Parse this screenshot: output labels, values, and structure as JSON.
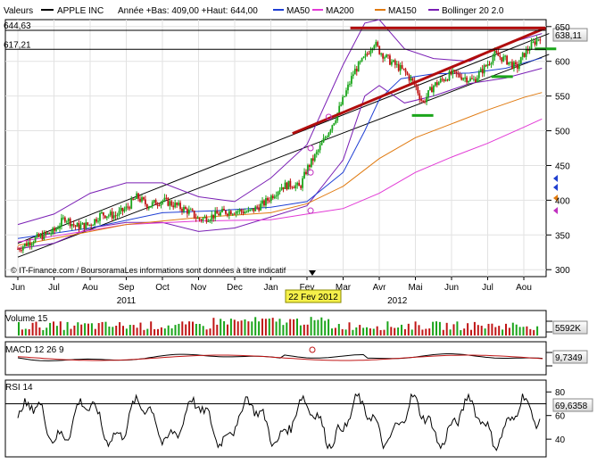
{
  "header": {
    "valeurs_label": "Valeurs",
    "series_label": "APPLE INC",
    "range_label": "Année +Bas: 409,00 +Haut: 644,00",
    "indicators": [
      {
        "name": "MA50",
        "color": "#1f3fd4"
      },
      {
        "name": "MA200",
        "color": "#e23ad6"
      },
      {
        "name": "MA150",
        "color": "#e07a10"
      },
      {
        "name": "Bollinger 20 2.0",
        "color": "#7a1fb5"
      }
    ]
  },
  "reference_lines": [
    {
      "label": "644,63",
      "value": 644.63
    },
    {
      "label": "617,21",
      "value": 617.21
    }
  ],
  "last_price": {
    "label": "638,11",
    "value": 638.11
  },
  "footer_note": "© IT-Finance.com / BoursoramaLes informations sont données à titre indicatif",
  "cursor_date": "22 Fev 2012",
  "chart_data": [
    {
      "type": "candlestick",
      "title": "APPLE INC",
      "x_ticks": [
        "Jun",
        "Jul",
        "Aou",
        "Sep",
        "Oct",
        "Nov",
        "Dec",
        "Jan",
        "Fev",
        "Mar",
        "Avr",
        "Mai",
        "Jun",
        "Jul",
        "Aou"
      ],
      "year_labels": [
        "2011",
        "2012"
      ],
      "y_ticks": [
        300,
        350,
        400,
        450,
        500,
        550,
        600,
        650
      ],
      "ylim": [
        290,
        660
      ],
      "price_path": [
        [
          0,
          330
        ],
        [
          0.5,
          345
        ],
        [
          1,
          355
        ],
        [
          1.3,
          375
        ],
        [
          1.6,
          362
        ],
        [
          2,
          365
        ],
        [
          2.3,
          380
        ],
        [
          2.7,
          378
        ],
        [
          3,
          388
        ],
        [
          3.3,
          405
        ],
        [
          3.6,
          392
        ],
        [
          4,
          400
        ],
        [
          4.4,
          392
        ],
        [
          4.8,
          382
        ],
        [
          5,
          372
        ],
        [
          5.3,
          376
        ],
        [
          5.7,
          383
        ],
        [
          6,
          385
        ],
        [
          6.4,
          383
        ],
        [
          6.8,
          395
        ],
        [
          7,
          405
        ],
        [
          7.3,
          420
        ],
        [
          7.6,
          423
        ],
        [
          7.8,
          418
        ],
        [
          8.0,
          445
        ],
        [
          8.3,
          470
        ],
        [
          8.6,
          500
        ],
        [
          8.8,
          520
        ],
        [
          9,
          545
        ],
        [
          9.3,
          585
        ],
        [
          9.6,
          605
        ],
        [
          9.85,
          628
        ],
        [
          10,
          615
        ],
        [
          10.3,
          600
        ],
        [
          10.7,
          585
        ],
        [
          11,
          565
        ],
        [
          11.2,
          540
        ],
        [
          11.5,
          565
        ],
        [
          11.8,
          575
        ],
        [
          12,
          582
        ],
        [
          12.3,
          578
        ],
        [
          12.6,
          572
        ],
        [
          12.9,
          590
        ],
        [
          13.2,
          610
        ],
        [
          13.5,
          602
        ],
        [
          13.8,
          590
        ],
        [
          14,
          610
        ],
        [
          14.3,
          628
        ],
        [
          14.5,
          638
        ]
      ],
      "ma50": [
        [
          0,
          345
        ],
        [
          2,
          360
        ],
        [
          4,
          382
        ],
        [
          5.5,
          385
        ],
        [
          7,
          390
        ],
        [
          8,
          398
        ],
        [
          9,
          440
        ],
        [
          9.6,
          500
        ],
        [
          10,
          545
        ],
        [
          10.6,
          575
        ],
        [
          11.5,
          582
        ],
        [
          12.5,
          583
        ],
        [
          13.5,
          590
        ],
        [
          14.5,
          605
        ]
      ],
      "ma150": [
        [
          0,
          335
        ],
        [
          3,
          365
        ],
        [
          5,
          375
        ],
        [
          7,
          382
        ],
        [
          8,
          395
        ],
        [
          9,
          420
        ],
        [
          10,
          460
        ],
        [
          11,
          490
        ],
        [
          12,
          510
        ],
        [
          13,
          530
        ],
        [
          14,
          548
        ],
        [
          14.5,
          555
        ]
      ],
      "ma200": [
        [
          0,
          340
        ],
        [
          3,
          365
        ],
        [
          5,
          370
        ],
        [
          7,
          372
        ],
        [
          8,
          380
        ],
        [
          9,
          388
        ],
        [
          10,
          410
        ],
        [
          11,
          440
        ],
        [
          12,
          462
        ],
        [
          13,
          482
        ],
        [
          14,
          505
        ],
        [
          14.5,
          517
        ]
      ],
      "bollinger_upper": [
        [
          0,
          365
        ],
        [
          1,
          380
        ],
        [
          2,
          410
        ],
        [
          3,
          425
        ],
        [
          4,
          425
        ],
        [
          5,
          405
        ],
        [
          6,
          398
        ],
        [
          7,
          432
        ],
        [
          8,
          480
        ],
        [
          9,
          595
        ],
        [
          9.6,
          655
        ],
        [
          10,
          660
        ],
        [
          10.7,
          618
        ],
        [
          11.5,
          604
        ],
        [
          12.5,
          600
        ],
        [
          13.5,
          625
        ],
        [
          14.5,
          640
        ]
      ],
      "bollinger_lower": [
        [
          0,
          330
        ],
        [
          1,
          338
        ],
        [
          2,
          360
        ],
        [
          3,
          368
        ],
        [
          4,
          368
        ],
        [
          5,
          355
        ],
        [
          6,
          360
        ],
        [
          7,
          376
        ],
        [
          8,
          392
        ],
        [
          9,
          458
        ],
        [
          9.6,
          550
        ],
        [
          10,
          565
        ],
        [
          10.7,
          540
        ],
        [
          11.5,
          550
        ],
        [
          12.5,
          568
        ],
        [
          13.5,
          576
        ],
        [
          14.5,
          590
        ]
      ],
      "trend_lines": [
        {
          "from": [
            0,
            338
          ],
          "to": [
            14.7,
            640
          ],
          "color": "#000000"
        },
        {
          "from": [
            0,
            318
          ],
          "to": [
            14.7,
            610
          ],
          "color": "#000000"
        },
        {
          "from": [
            7.6,
            496
          ],
          "to": [
            14.6,
            648
          ],
          "color": "#b10d0d"
        },
        {
          "from": [
            9.2,
            648
          ],
          "to": [
            14.6,
            648
          ],
          "color": "#b10d0d"
        }
      ],
      "markers": [
        {
          "x": 11.2,
          "y": 522
        },
        {
          "x": 13.4,
          "y": 578
        },
        {
          "x": 14.6,
          "y": 618
        }
      ]
    },
    {
      "type": "bar",
      "title": "Volume 15",
      "last_label": "5592K",
      "ylim": [
        0,
        100
      ]
    },
    {
      "type": "line",
      "title": "MACD 12 26 9",
      "last_label": "9,7349"
    },
    {
      "type": "line",
      "title": "RSI 14",
      "y_ticks": [
        40,
        60,
        80
      ],
      "ylim": [
        25,
        90
      ],
      "last_label": "69,6358",
      "threshold": 70
    }
  ]
}
